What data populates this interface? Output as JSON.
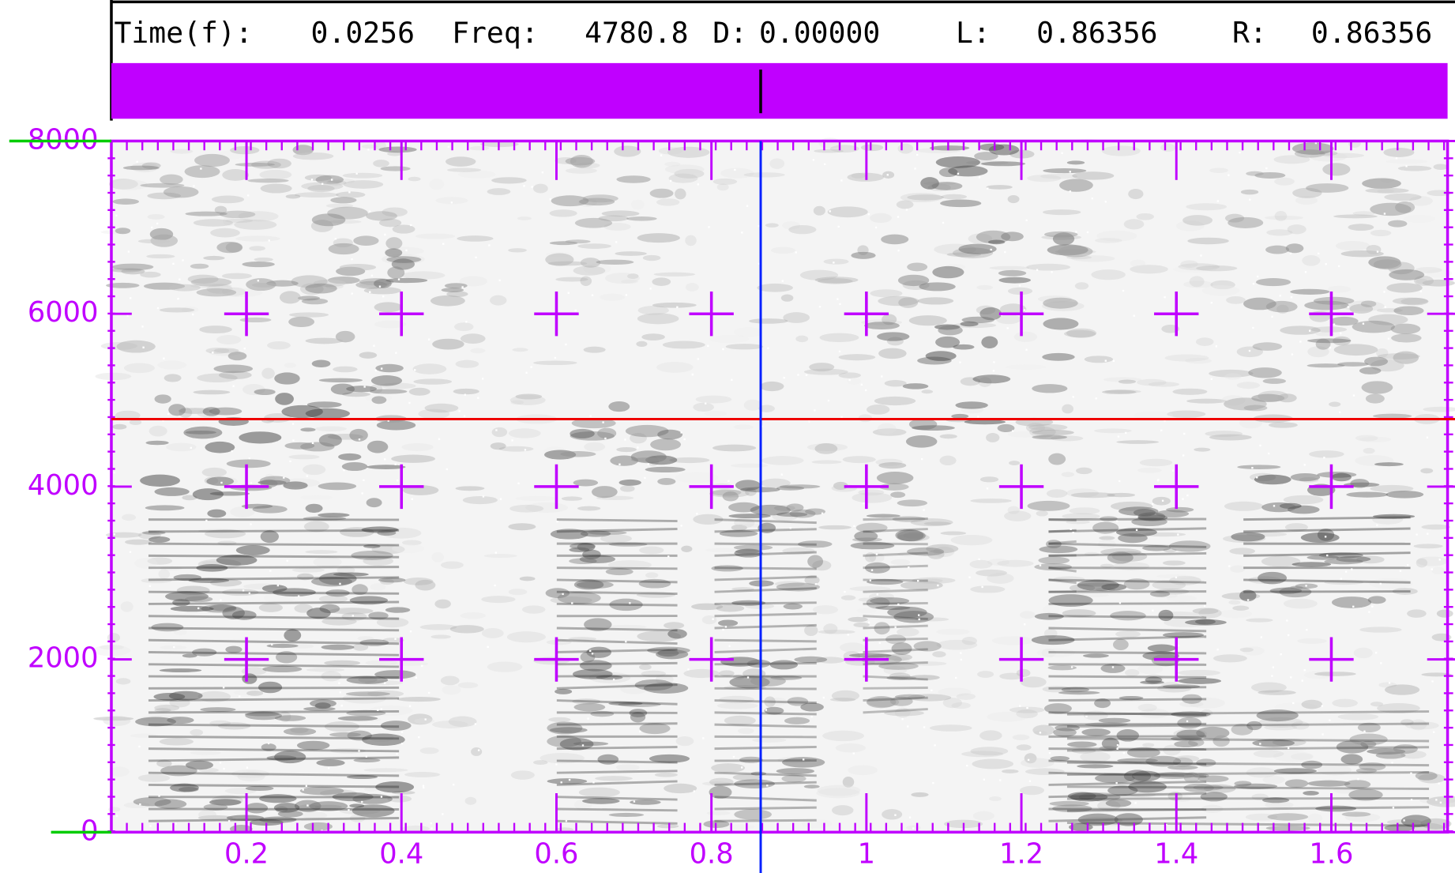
{
  "header": {
    "fields": [
      {
        "label": "Time(f):",
        "value": "0.0256"
      },
      {
        "label": "Freq:",
        "value": "4780.8"
      },
      {
        "label": "D:",
        "value": "0.00000"
      },
      {
        "label": "L:",
        "value": "0.86356"
      },
      {
        "label": "R:",
        "value": "0.86356"
      }
    ]
  },
  "spectrogram": {
    "xlim": [
      0.0256,
      1.75
    ],
    "ylim": [
      0,
      8000
    ],
    "xticks": [
      0.2,
      0.4,
      0.6,
      0.8,
      1,
      1.2,
      1.4,
      1.6
    ],
    "yticks": [
      0,
      2000,
      4000,
      6000,
      8000
    ],
    "cursor": {
      "time": 0.86356,
      "freq": 4780.8
    }
  }
}
